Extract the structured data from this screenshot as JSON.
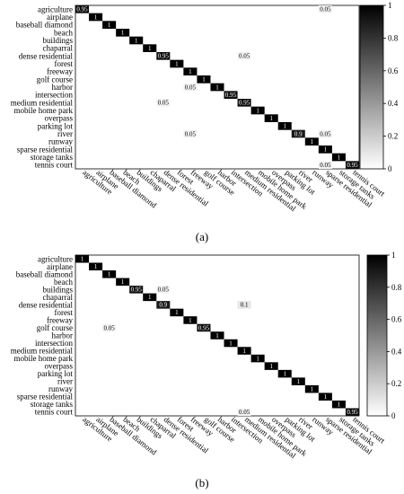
{
  "chart_data": [
    {
      "type": "heatmap",
      "panel_label": "(a)",
      "rows": [
        "agriculture",
        "airplane",
        "baseball diamond",
        "beach",
        "buildings",
        "chaparral",
        "dense residential",
        "forest",
        "freeway",
        "golf course",
        "harbor",
        "intersection",
        "medium residential",
        "mobile home park",
        "overpass",
        "parking lot",
        "river",
        "runway",
        "sparse residential",
        "storage tanks",
        "tennis court"
      ],
      "columns": [
        "agriculture",
        "airplane",
        "baseball diamond",
        "beach",
        "buildings",
        "chaparral",
        "dense residential",
        "forest",
        "freeway",
        "golf course",
        "harbor",
        "intersection",
        "medium residential",
        "mobile home park",
        "overpass",
        "parking lot",
        "river",
        "runway",
        "sparse residential",
        "storage tanks",
        "tennis court"
      ],
      "cells": [
        {
          "row": 0,
          "col": 0,
          "value": 0.95
        },
        {
          "row": 0,
          "col": 18,
          "value": 0.05
        },
        {
          "row": 1,
          "col": 1,
          "value": 1
        },
        {
          "row": 2,
          "col": 2,
          "value": 1
        },
        {
          "row": 3,
          "col": 3,
          "value": 1
        },
        {
          "row": 4,
          "col": 4,
          "value": 1
        },
        {
          "row": 5,
          "col": 5,
          "value": 1
        },
        {
          "row": 6,
          "col": 6,
          "value": 0.95
        },
        {
          "row": 6,
          "col": 12,
          "value": 0.05
        },
        {
          "row": 7,
          "col": 7,
          "value": 1
        },
        {
          "row": 8,
          "col": 8,
          "value": 1
        },
        {
          "row": 9,
          "col": 9,
          "value": 1
        },
        {
          "row": 10,
          "col": 10,
          "value": 1
        },
        {
          "row": 10,
          "col": 8,
          "value": 0.05
        },
        {
          "row": 11,
          "col": 11,
          "value": 0.95
        },
        {
          "row": 12,
          "col": 12,
          "value": 0.95
        },
        {
          "row": 12,
          "col": 6,
          "value": 0.05
        },
        {
          "row": 13,
          "col": 13,
          "value": 1
        },
        {
          "row": 14,
          "col": 14,
          "value": 1
        },
        {
          "row": 15,
          "col": 15,
          "value": 1
        },
        {
          "row": 16,
          "col": 16,
          "value": 0.9
        },
        {
          "row": 16,
          "col": 8,
          "value": 0.05
        },
        {
          "row": 16,
          "col": 18,
          "value": 0.05
        },
        {
          "row": 17,
          "col": 17,
          "value": 1
        },
        {
          "row": 18,
          "col": 18,
          "value": 1
        },
        {
          "row": 19,
          "col": 19,
          "value": 1
        },
        {
          "row": 20,
          "col": 20,
          "value": 0.95
        },
        {
          "row": 20,
          "col": 18,
          "value": 0.05
        }
      ],
      "colorbar": {
        "range": [
          0,
          1
        ],
        "ticks": [
          "0",
          "0.2",
          "0.4",
          "0.6",
          "0.8",
          "1"
        ],
        "low_color": "#ffffff",
        "high_color": "#000000"
      }
    },
    {
      "type": "heatmap",
      "panel_label": "(b)",
      "rows": [
        "agriculture",
        "airplane",
        "baseball diamond",
        "beach",
        "buildings",
        "chaparral",
        "dense residential",
        "forest",
        "freeway",
        "golf course",
        "harbor",
        "intersection",
        "medium residential",
        "mobile home park",
        "overpass",
        "parking lot",
        "river",
        "runway",
        "sparse residential",
        "storage tanks",
        "tennis court"
      ],
      "columns": [
        "agriculture",
        "airplane",
        "baseball diamond",
        "beach",
        "buildings",
        "chaparral",
        "dense residential",
        "forest",
        "freeway",
        "golf course",
        "harbor",
        "intersection",
        "medium residential",
        "mobile home park",
        "overpass",
        "parking lot",
        "river",
        "runway",
        "sparse residential",
        "storage tanks",
        "tennis court"
      ],
      "cells": [
        {
          "row": 0,
          "col": 0,
          "value": 1
        },
        {
          "row": 1,
          "col": 1,
          "value": 1
        },
        {
          "row": 2,
          "col": 2,
          "value": 1
        },
        {
          "row": 3,
          "col": 3,
          "value": 1
        },
        {
          "row": 4,
          "col": 4,
          "value": 0.95
        },
        {
          "row": 4,
          "col": 6,
          "value": 0.05
        },
        {
          "row": 5,
          "col": 5,
          "value": 1
        },
        {
          "row": 6,
          "col": 6,
          "value": 0.9
        },
        {
          "row": 6,
          "col": 12,
          "value": 0.1
        },
        {
          "row": 7,
          "col": 7,
          "value": 1
        },
        {
          "row": 8,
          "col": 8,
          "value": 1
        },
        {
          "row": 9,
          "col": 9,
          "value": 0.95
        },
        {
          "row": 9,
          "col": 2,
          "value": 0.05
        },
        {
          "row": 10,
          "col": 10,
          "value": 1
        },
        {
          "row": 11,
          "col": 11,
          "value": 1
        },
        {
          "row": 12,
          "col": 12,
          "value": 1
        },
        {
          "row": 13,
          "col": 13,
          "value": 1
        },
        {
          "row": 14,
          "col": 14,
          "value": 1
        },
        {
          "row": 15,
          "col": 15,
          "value": 1
        },
        {
          "row": 16,
          "col": 16,
          "value": 1
        },
        {
          "row": 17,
          "col": 17,
          "value": 1
        },
        {
          "row": 18,
          "col": 18,
          "value": 1
        },
        {
          "row": 19,
          "col": 19,
          "value": 1
        },
        {
          "row": 20,
          "col": 20,
          "value": 0.95
        },
        {
          "row": 20,
          "col": 12,
          "value": 0.05
        }
      ],
      "colorbar": {
        "range": [
          0,
          1
        ],
        "ticks": [
          "0",
          "0.2",
          "0.4",
          "0.6",
          "0.8",
          "1"
        ],
        "low_color": "#ffffff",
        "high_color": "#000000"
      }
    }
  ]
}
